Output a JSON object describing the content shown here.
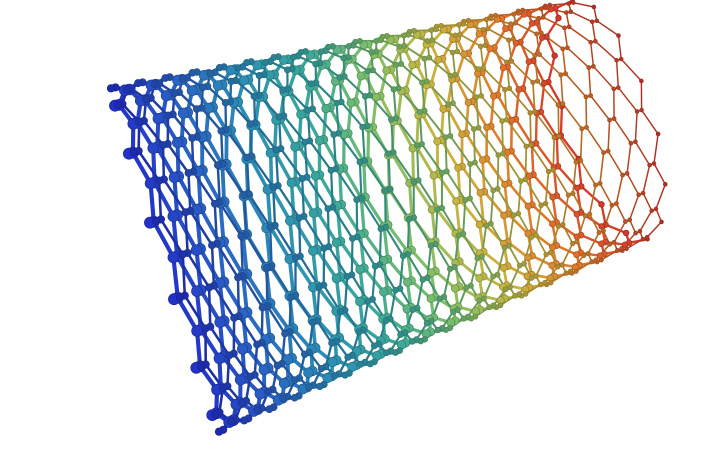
{
  "image": {
    "subject": "carbon-nanotube-lattice",
    "structure": "hexagonal-lattice-tube",
    "rendering": "ball-and-stick",
    "background_color": "#ffffff",
    "color_gradient": [
      "#2231c9",
      "#2a63c4",
      "#2b8fb5",
      "#3aa89a",
      "#7cc06a",
      "#c9b53e",
      "#e07a2a",
      "#d4362a"
    ],
    "gradient_direction": "front-to-back"
  }
}
